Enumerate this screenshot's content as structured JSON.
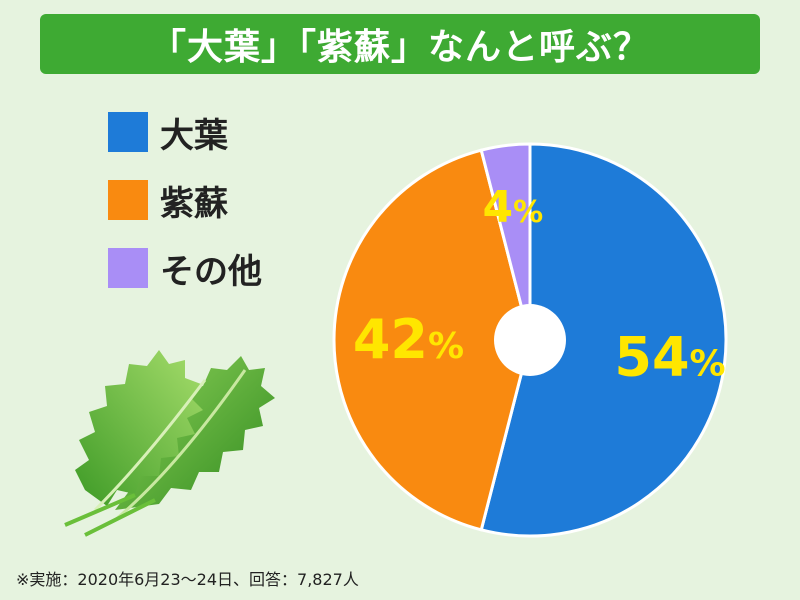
{
  "title": "「大葉」「紫蘇」なんと呼ぶ？",
  "chart_data": {
    "type": "pie",
    "categories": [
      "大葉",
      "紫蘇",
      "その他"
    ],
    "values": [
      54,
      42,
      4
    ],
    "unit": "%",
    "labels": [
      "54",
      "42",
      "4"
    ],
    "colors": [
      "#1e7bd8",
      "#f98a10",
      "#a98ef6"
    ]
  },
  "legend": [
    {
      "label": "大葉",
      "color": "#1e7bd8"
    },
    {
      "label": "紫蘇",
      "color": "#f98a10"
    },
    {
      "label": "その他",
      "color": "#a98ef6"
    }
  ],
  "footnote": "※実施：2020年6月23〜24日、回答：7,827人",
  "icons": {
    "leaf": "shiso-leaf-illustration"
  }
}
